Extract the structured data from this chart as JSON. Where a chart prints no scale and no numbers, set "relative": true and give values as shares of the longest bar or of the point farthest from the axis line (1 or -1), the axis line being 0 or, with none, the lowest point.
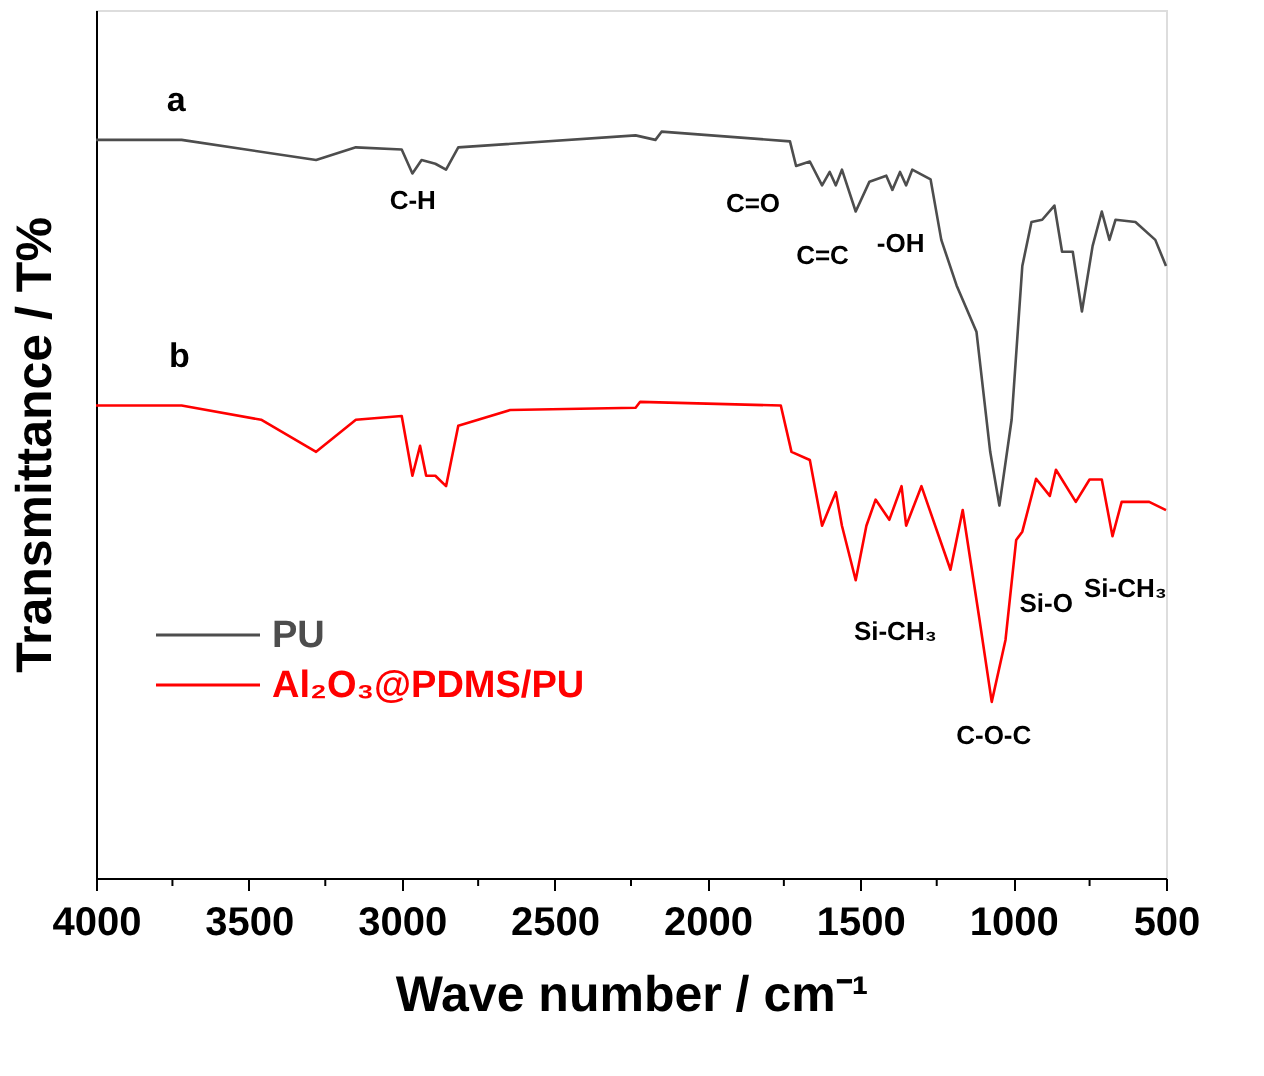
{
  "chart_data": {
    "type": "line",
    "relative": true,
    "xlabel": "Wave number / cm⁻¹",
    "ylabel": "Transmittance / T%",
    "xlim": [
      4000,
      500
    ],
    "xticks": [
      4000,
      {
        "value": 3750,
        "label": null
      },
      3500,
      {
        "value": 3250,
        "label": null
      },
      3000,
      {
        "value": 2750,
        "label": null
      },
      2500,
      {
        "value": 2250,
        "label": null
      },
      2000,
      {
        "value": 1750,
        "label": null
      },
      1500,
      {
        "value": 1250,
        "label": null
      },
      1000,
      {
        "value": 750,
        "label": null
      },
      500
    ],
    "tick_labels": "x",
    "legend": "left",
    "grid": false,
    "line_style": "solid",
    "marker": "none",
    "series": [
      {
        "name": "PU",
        "color": "#4d4d4d",
        "x": [
          4000,
          3720,
          3280,
          3150,
          3000,
          2965,
          2935,
          2890,
          2855,
          2815,
          2235,
          2170,
          2150,
          1730,
          1710,
          1665,
          1625,
          1600,
          1580,
          1560,
          1515,
          1470,
          1415,
          1395,
          1370,
          1350,
          1330,
          1270,
          1235,
          1185,
          1120,
          1075,
          1045,
          1005,
          970,
          940,
          905,
          865,
          840,
          805,
          775,
          740,
          710,
          685,
          665,
          600,
          535,
          500
        ],
        "values": [
          0.989,
          0.989,
          0.962,
          0.979,
          0.976,
          0.944,
          0.962,
          0.957,
          0.949,
          0.979,
          0.995,
          0.989,
          1.0,
          0.987,
          0.954,
          0.96,
          0.928,
          0.946,
          0.928,
          0.949,
          0.893,
          0.933,
          0.941,
          0.922,
          0.946,
          0.928,
          0.949,
          0.936,
          0.855,
          0.794,
          0.732,
          0.571,
          0.499,
          0.614,
          0.82,
          0.879,
          0.882,
          0.901,
          0.839,
          0.839,
          0.759,
          0.847,
          0.893,
          0.855,
          0.882,
          0.879,
          0.855,
          0.82
        ]
      },
      {
        "name": "Al₂O₃@PDMS/PU",
        "color": "#ff0000",
        "x": [
          4000,
          3720,
          3460,
          3280,
          3150,
          3000,
          2965,
          2940,
          2920,
          2890,
          2855,
          2815,
          2645,
          2235,
          2220,
          1760,
          1725,
          1665,
          1625,
          1580,
          1560,
          1515,
          1480,
          1450,
          1405,
          1365,
          1350,
          1300,
          1205,
          1165,
          1110,
          1070,
          1025,
          990,
          970,
          925,
          880,
          860,
          795,
          750,
          710,
          675,
          645,
          555,
          500
        ],
        "values": [
          0.633,
          0.633,
          0.614,
          0.571,
          0.614,
          0.619,
          0.539,
          0.579,
          0.539,
          0.539,
          0.525,
          0.606,
          0.627,
          0.63,
          0.638,
          0.633,
          0.571,
          0.56,
          0.472,
          0.517,
          0.472,
          0.399,
          0.472,
          0.507,
          0.48,
          0.525,
          0.472,
          0.525,
          0.413,
          0.493,
          0.346,
          0.236,
          0.319,
          0.453,
          0.464,
          0.535,
          0.512,
          0.547,
          0.504,
          0.534,
          0.534,
          0.458,
          0.504,
          0.504,
          0.493
        ]
      }
    ],
    "annotations": [
      "a",
      "b",
      "C-H",
      "C=O",
      "C=C",
      "-OH",
      "Si-CH₃",
      "C-O-C",
      "Si-O",
      "Si-CH₃"
    ]
  }
}
